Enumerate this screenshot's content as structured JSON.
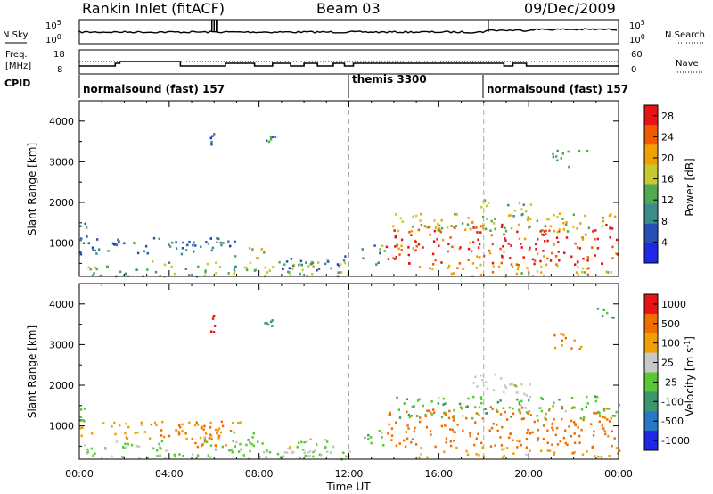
{
  "header": {
    "station": "Rankin Inlet (fitACF)",
    "beam": "Beam 03",
    "date": "09/Dec/2009"
  },
  "strips": {
    "nsky_label": "N.Sky",
    "nsky_ticks": [
      "10^5",
      "10^0"
    ],
    "nsearch_label": "N.Search",
    "nsearch_ticks": [
      "10^5",
      "10^0"
    ],
    "freq_label": "Freq.",
    "freq_unit": "[MHz]",
    "freq_ticks": [
      "18",
      "8"
    ],
    "nave_label": "Nave",
    "nave_ticks": [
      "60",
      "0"
    ],
    "cpid_label": "CPID",
    "cpid_segments": [
      {
        "name": "normalsound (fast) 157",
        "start_hour": 0
      },
      {
        "name": "themis 3300",
        "start_hour": 12
      },
      {
        "name": "normalsound (fast) 157",
        "start_hour": 18
      }
    ]
  },
  "chart_data": [
    {
      "type": "heatmap",
      "quantity": "Power",
      "ylabel": "Slant Range [km]",
      "xlabel": "Time UT",
      "x_range_hours": [
        0,
        24
      ],
      "ylim": [
        180,
        4500
      ],
      "x_ticks": [
        "00:00",
        "04:00",
        "08:00",
        "12:00",
        "16:00",
        "20:00",
        "00:00"
      ],
      "y_ticks": [
        1000,
        2000,
        3000,
        4000
      ],
      "colorbar": {
        "label": "Power [dB]",
        "ticks": [
          4,
          8,
          12,
          16,
          20,
          24,
          28
        ],
        "range": [
          0,
          30
        ],
        "colors": [
          "#1e28e6",
          "#2850b4",
          "#3c8c8c",
          "#50aa50",
          "#c8c832",
          "#f0a000",
          "#f05a00",
          "#e61414"
        ]
      },
      "dashed_hours": [
        12,
        18
      ],
      "echo_regions": [
        {
          "t": [
            0.0,
            0.3
          ],
          "r": [
            1100,
            1550
          ],
          "value": 10
        },
        {
          "t": [
            0.0,
            7.2
          ],
          "r": [
            750,
            1150
          ],
          "value": 7
        },
        {
          "t": [
            0.1,
            12.0
          ],
          "r": [
            190,
            600
          ],
          "value": 14
        },
        {
          "t": [
            4.0,
            6.5
          ],
          "r": [
            850,
            1050
          ],
          "value": 9
        },
        {
          "t": [
            6.8,
            8.2
          ],
          "r": [
            650,
            950
          ],
          "value": 17
        },
        {
          "t": [
            9.0,
            12.0
          ],
          "r": [
            350,
            700
          ],
          "value": 6
        },
        {
          "t": [
            5.8,
            6.0
          ],
          "r": [
            3300,
            3900
          ],
          "value": 6
        },
        {
          "t": [
            8.2,
            8.7
          ],
          "r": [
            3450,
            3650
          ],
          "value": 8
        },
        {
          "t": [
            12.5,
            13.6
          ],
          "r": [
            500,
            1000
          ],
          "value": 12
        },
        {
          "t": [
            13.6,
            24.0
          ],
          "r": [
            500,
            1500
          ],
          "value": 26
        },
        {
          "t": [
            14.0,
            24.0
          ],
          "r": [
            1300,
            1750
          ],
          "value": 17
        },
        {
          "t": [
            15.0,
            24.0
          ],
          "r": [
            200,
            500
          ],
          "value": 19
        },
        {
          "t": [
            17.8,
            18.2
          ],
          "r": [
            1900,
            2100
          ],
          "value": 12
        },
        {
          "t": [
            19.0,
            20.2
          ],
          "r": [
            1400,
            2050
          ],
          "value": 15
        },
        {
          "t": [
            21.0,
            22.6
          ],
          "r": [
            2900,
            3300
          ],
          "value": 9
        }
      ]
    },
    {
      "type": "heatmap",
      "quantity": "Velocity",
      "ylabel": "Slant Range [km]",
      "xlabel": "Time UT",
      "x_range_hours": [
        0,
        24
      ],
      "ylim": [
        180,
        4500
      ],
      "x_ticks": [
        "00:00",
        "04:00",
        "08:00",
        "12:00",
        "16:00",
        "20:00",
        "00:00"
      ],
      "y_ticks": [
        1000,
        2000,
        3000,
        4000
      ],
      "colorbar": {
        "label": "Velocity  [m s^-1]",
        "ticks": [
          "1000",
          "500",
          "100",
          "25",
          "-25",
          "-100",
          "-500",
          "-1000"
        ],
        "colors": [
          "#1e28e6",
          "#2878c8",
          "#3c966e",
          "#5ac832",
          "#c8c8c8",
          "#f0a000",
          "#f06e00",
          "#e61414"
        ]
      },
      "dashed_hours": [
        12,
        18
      ],
      "echo_regions": [
        {
          "t": [
            0.0,
            0.3
          ],
          "r": [
            1100,
            1550
          ],
          "value": 60
        },
        {
          "t": [
            0.0,
            7.2
          ],
          "r": [
            700,
            1150
          ],
          "value": -80
        },
        {
          "t": [
            0.1,
            12.0
          ],
          "r": [
            190,
            650
          ],
          "value": 40
        },
        {
          "t": [
            3.5,
            6.5
          ],
          "r": [
            500,
            1000
          ],
          "value": -150
        },
        {
          "t": [
            6.8,
            8.2
          ],
          "r": [
            550,
            900
          ],
          "value": 80
        },
        {
          "t": [
            9.0,
            12.0
          ],
          "r": [
            250,
            700
          ],
          "value": 0
        },
        {
          "t": [
            5.8,
            6.0
          ],
          "r": [
            3300,
            3900
          ],
          "value": -700
        },
        {
          "t": [
            8.2,
            8.7
          ],
          "r": [
            3450,
            3650
          ],
          "value": 150
        },
        {
          "t": [
            12.5,
            13.6
          ],
          "r": [
            500,
            1000
          ],
          "value": 60
        },
        {
          "t": [
            13.6,
            24.0
          ],
          "r": [
            500,
            1500
          ],
          "value": -250
        },
        {
          "t": [
            14.0,
            24.0
          ],
          "r": [
            1200,
            1750
          ],
          "value": 80
        },
        {
          "t": [
            15.0,
            24.0
          ],
          "r": [
            250,
            500
          ],
          "value": -60
        },
        {
          "t": [
            17.5,
            19.0
          ],
          "r": [
            1800,
            2300
          ],
          "value": 0
        },
        {
          "t": [
            19.0,
            20.2
          ],
          "r": [
            1300,
            2050
          ],
          "value": 0
        },
        {
          "t": [
            21.0,
            22.6
          ],
          "r": [
            2900,
            3300
          ],
          "value": -150
        },
        {
          "t": [
            23.0,
            23.8
          ],
          "r": [
            3600,
            4000
          ],
          "value": 200
        }
      ]
    }
  ]
}
